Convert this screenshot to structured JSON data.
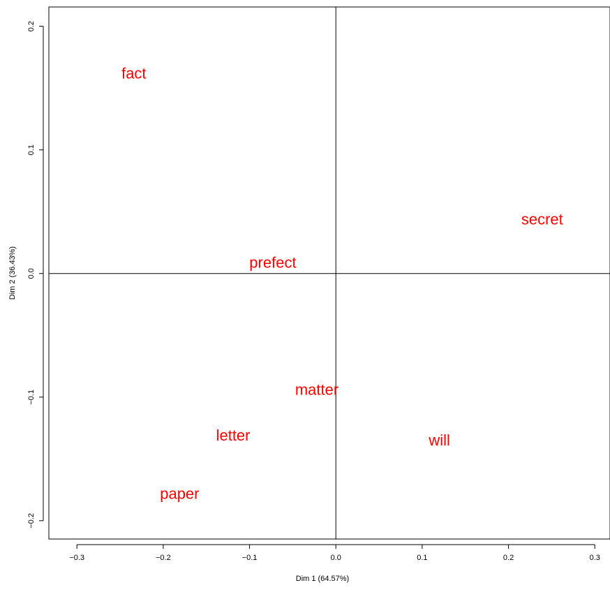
{
  "chart_data": {
    "type": "scatter",
    "title": "",
    "xlabel": "Dim 1 (64.57%)",
    "ylabel": "Dim 2 (36.43%)",
    "xlim": [
      -0.3325,
      0.3176
    ],
    "ylim": [
      -0.2148,
      0.2156
    ],
    "x_ticks": [
      -0.3,
      -0.2,
      -0.1,
      0.0,
      0.1,
      0.2,
      0.3
    ],
    "x_tick_labels": [
      "−0.3",
      "−0.2",
      "−0.1",
      "0.0",
      "0.1",
      "0.2",
      "0.3"
    ],
    "y_ticks": [
      -0.2,
      -0.1,
      0.0,
      0.1,
      0.2
    ],
    "y_tick_labels": [
      "−0.2",
      "−0.1",
      "0.0",
      "0.1",
      "0.2"
    ],
    "reference_lines": {
      "x": 0.0,
      "y": 0.0
    },
    "grid": false,
    "label_color": "#ff0000",
    "points": [
      {
        "label": "fact",
        "x": -0.234,
        "y": 0.162
      },
      {
        "label": "secret",
        "x": 0.239,
        "y": 0.044
      },
      {
        "label": "prefect",
        "x": -0.073,
        "y": 0.009
      },
      {
        "label": "matter",
        "x": -0.022,
        "y": -0.094
      },
      {
        "label": "letter",
        "x": -0.119,
        "y": -0.131
      },
      {
        "label": "will",
        "x": 0.12,
        "y": -0.135
      },
      {
        "label": "paper",
        "x": -0.181,
        "y": -0.178
      }
    ]
  }
}
